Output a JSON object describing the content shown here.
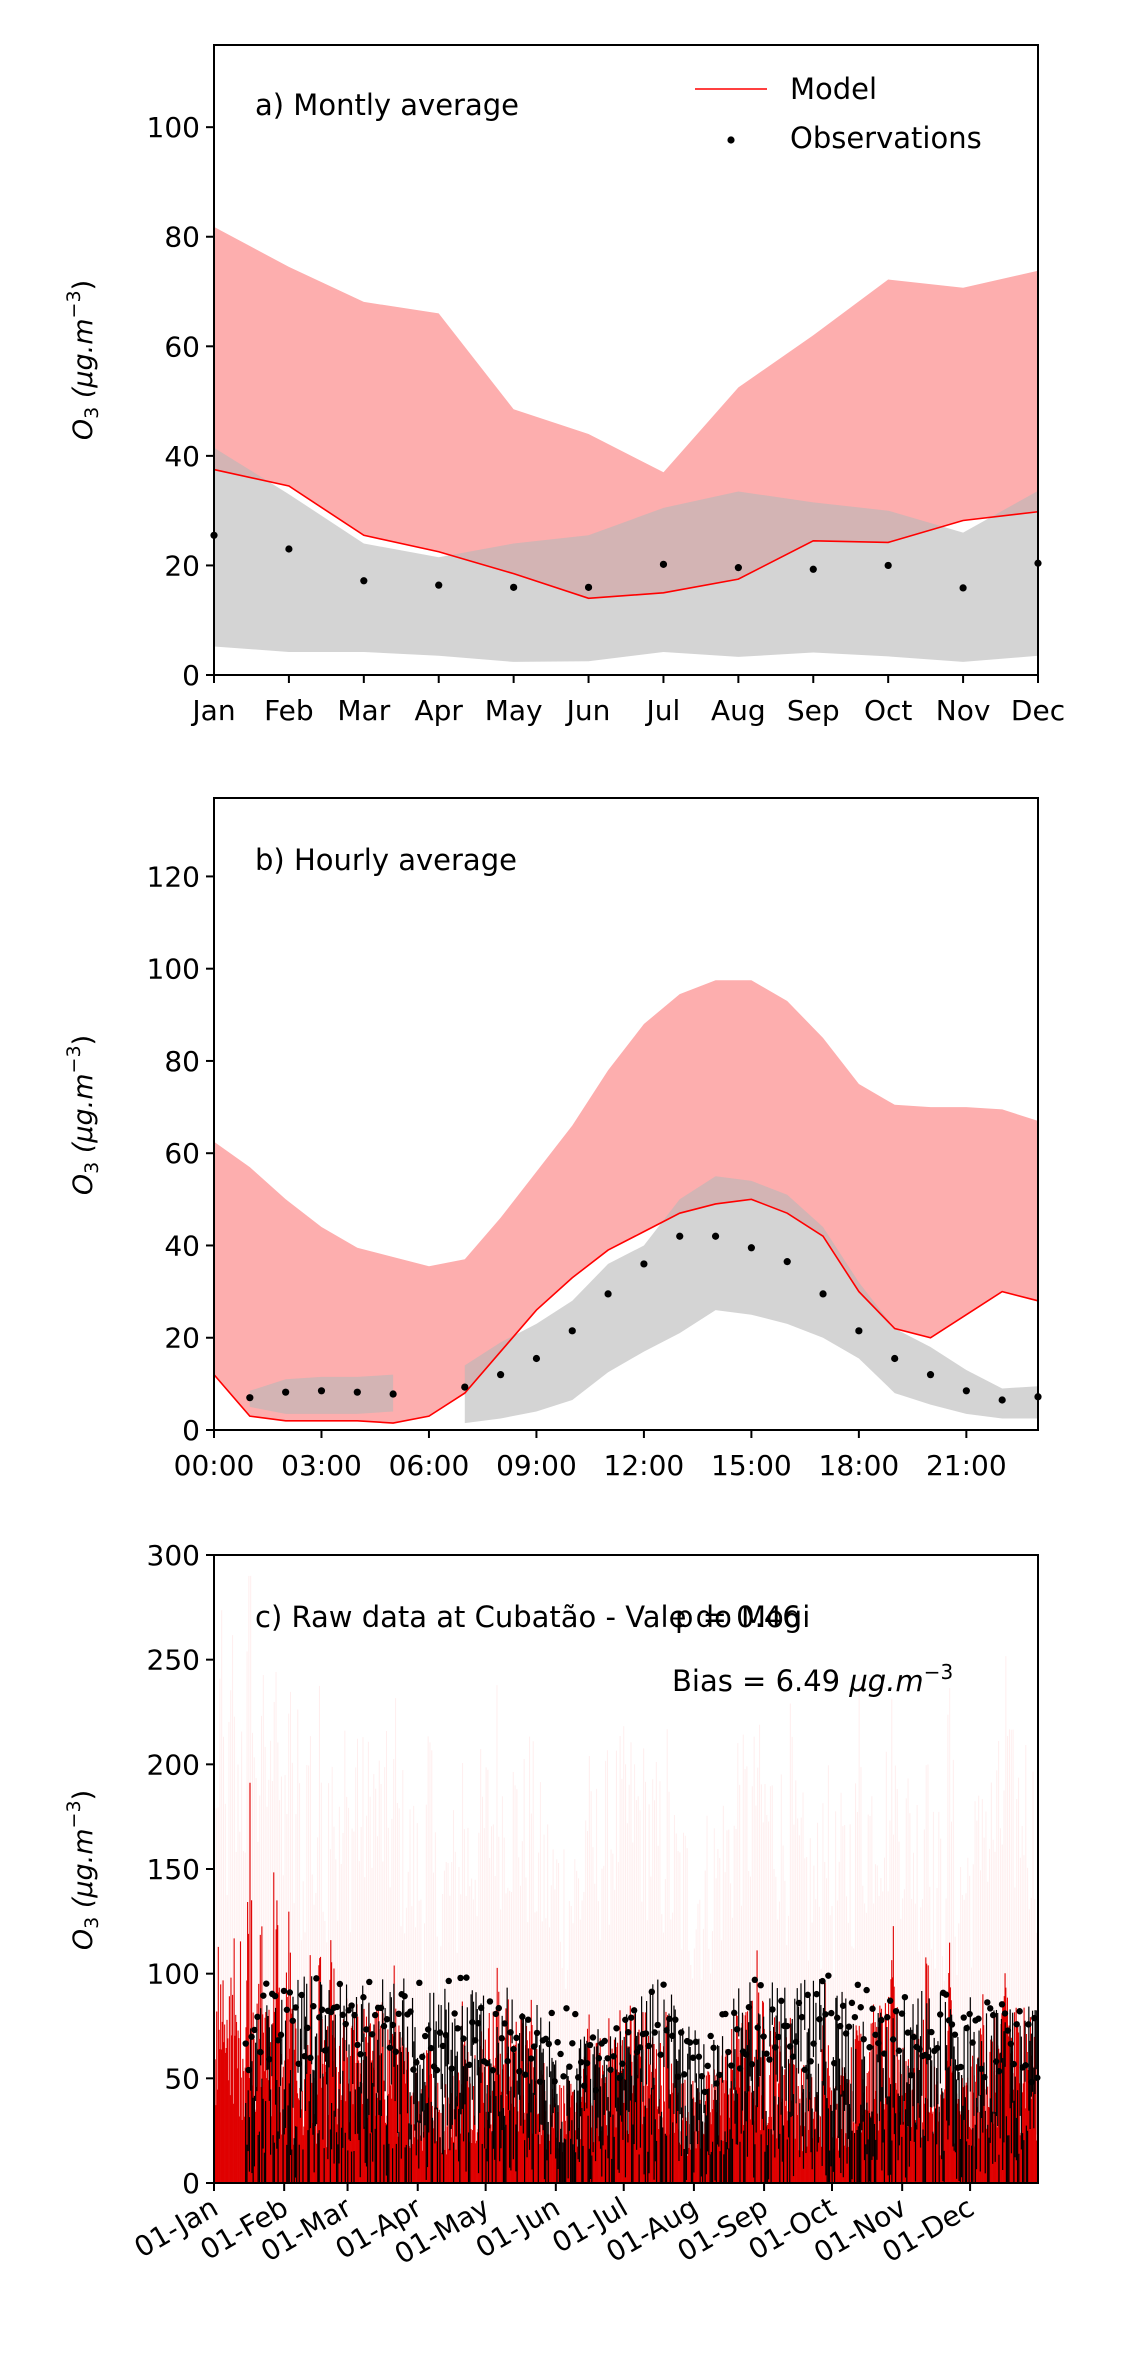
{
  "chart_data": [
    {
      "type": "line",
      "panel_label": "a) Montly average",
      "ylabel": "O3 (μg.m⁻³)",
      "ylabel_main": "O",
      "ylabel_sub": "3",
      "ylabel_unit": " (μg.m",
      "ylabel_exp": "−3",
      "ylabel_close": ")",
      "ylim": [
        0,
        115
      ],
      "yticks": [
        "0",
        "20",
        "40",
        "60",
        "80",
        "100"
      ],
      "categories": [
        "Jan",
        "Feb",
        "Mar",
        "Apr",
        "May",
        "Jun",
        "Jul",
        "Aug",
        "Sep",
        "Oct",
        "Nov",
        "Dec"
      ],
      "legend": {
        "position": "top-right",
        "entries": [
          "Model",
          "Observations"
        ]
      },
      "series": [
        {
          "name": "Model",
          "color": "#ff0000",
          "values": [
            37.5,
            34.5,
            25.5,
            22.5,
            18.5,
            14,
            15,
            17.5,
            24.5,
            24.2,
            28.2,
            29.8
          ]
        },
        {
          "name": "Observations",
          "color": "#000000",
          "values": [
            25.5,
            23,
            17.2,
            16.4,
            16,
            16,
            20.2,
            19.6,
            19.3,
            20,
            15.9,
            20.4
          ]
        }
      ],
      "model_band": {
        "color": "#fdaeae",
        "upper": [
          81.8,
          74.5,
          68.1,
          66,
          48.5,
          44,
          37,
          52.5,
          62,
          72.2,
          70.7,
          73.8
        ],
        "lower": [
          37.5,
          34.5,
          25.5,
          22.5,
          18.5,
          14,
          15,
          17.5,
          24.5,
          24.2,
          28.2,
          29.8
        ]
      },
      "obs_band": {
        "color": "#d4d4d4",
        "upper": [
          41.5,
          33,
          24,
          21.5,
          24,
          25.5,
          30.5,
          33.5,
          31.5,
          30,
          26,
          33.6
        ],
        "lower": [
          5.2,
          4.2,
          4.2,
          3.5,
          2.4,
          2.5,
          4.2,
          3.3,
          4.1,
          3.4,
          2.4,
          3.5
        ]
      }
    },
    {
      "type": "line",
      "panel_label": "b) Hourly average",
      "ylabel": "O3 (μg.m⁻³)",
      "ylabel_main": "O",
      "ylabel_sub": "3",
      "ylabel_unit": " (μg.m",
      "ylabel_exp": "−3",
      "ylabel_close": ")",
      "ylim": [
        0,
        137
      ],
      "xlim": [
        0,
        23
      ],
      "yticks": [
        "0",
        "20",
        "40",
        "60",
        "80",
        "100",
        "120"
      ],
      "xticks": [
        {
          "x": 0,
          "label": "00:00"
        },
        {
          "x": 3,
          "label": "03:00"
        },
        {
          "x": 6,
          "label": "06:00"
        },
        {
          "x": 9,
          "label": "09:00"
        },
        {
          "x": 12,
          "label": "12:00"
        },
        {
          "x": 15,
          "label": "15:00"
        },
        {
          "x": 18,
          "label": "18:00"
        },
        {
          "x": 21,
          "label": "21:00"
        }
      ],
      "x": [
        0,
        1,
        2,
        3,
        4,
        5,
        6,
        7,
        8,
        9,
        10,
        11,
        12,
        13,
        14,
        15,
        16,
        17,
        18,
        19,
        20,
        21,
        22,
        23
      ],
      "series": [
        {
          "name": "Model",
          "color": "#ff0000",
          "values": [
            12,
            3,
            2,
            2,
            2,
            1.5,
            3,
            8,
            17,
            26,
            33,
            39,
            43,
            47,
            49,
            50,
            47,
            42,
            30,
            22,
            20,
            25,
            30,
            28
          ]
        },
        {
          "name": "Observations",
          "color": "#000000",
          "values": [
            null,
            7,
            8.2,
            8.5,
            8.2,
            7.8,
            null,
            9.3,
            12,
            15.5,
            21.5,
            29.5,
            36,
            42,
            42,
            39.5,
            36.5,
            29.5,
            21.5,
            15.5,
            12,
            8.5,
            6.5,
            7.2
          ]
        }
      ],
      "model_band": {
        "color": "#fdaeae",
        "x": [
          0,
          1,
          2,
          3,
          4,
          5,
          6,
          7,
          8,
          9,
          10,
          11,
          12,
          13,
          14,
          15,
          16,
          17,
          18,
          19,
          20,
          21,
          22,
          23
        ],
        "upper": [
          62.5,
          57,
          50,
          44,
          39.5,
          37.5,
          35.5,
          37,
          46,
          56,
          66,
          78,
          88,
          94.5,
          97.5,
          97.5,
          93,
          85,
          75,
          70.5,
          70,
          70,
          69.5,
          67
        ],
        "lower": [
          12,
          3,
          2,
          2,
          2,
          1.5,
          3,
          8,
          17,
          26,
          33,
          39,
          43,
          47,
          49,
          50,
          47,
          42,
          30,
          22,
          20,
          25,
          30,
          28
        ]
      },
      "obs_band": {
        "color": "#d4d4d4",
        "segments": [
          {
            "x": [
              1,
              2,
              3,
              4,
              5
            ],
            "upper": [
              8.5,
              11,
              11.5,
              11.5,
              12
            ],
            "lower": [
              5,
              3.5,
              3.5,
              3.5,
              4
            ]
          },
          {
            "x": [
              7,
              8,
              9,
              10,
              11,
              12,
              13,
              14,
              15,
              16,
              17,
              18,
              19,
              20,
              21,
              22,
              23
            ],
            "upper": [
              14,
              19,
              23,
              28,
              36,
              40,
              50,
              55,
              54,
              51,
              44,
              32,
              22,
              18,
              13,
              9,
              9.5
            ],
            "lower": [
              1.5,
              2.5,
              4,
              6.5,
              12.5,
              17,
              21,
              26,
              25,
              23,
              20,
              15.5,
              8,
              5.5,
              3.5,
              2.5,
              2.5
            ]
          }
        ]
      }
    },
    {
      "type": "line",
      "panel_label": "c) Raw data at Cubatão - Vale do Mogi",
      "overlap_text": "p = 0.46",
      "bias_label": "Bias = 6.49 ",
      "bias_unit": "μg.m",
      "bias_exp": "−3",
      "ylabel": "O3 (μg.m⁻³)",
      "ylabel_main": "O",
      "ylabel_sub": "3",
      "ylabel_unit": " (μg.m",
      "ylabel_exp": "−3",
      "ylabel_close": ")",
      "ylim": [
        0,
        300
      ],
      "yticks": [
        "0",
        "50",
        "100",
        "150",
        "200",
        "250",
        "300"
      ],
      "xlim_days": [
        0,
        364
      ],
      "xticks": [
        {
          "day": 0,
          "label": "01-Jan"
        },
        {
          "day": 31,
          "label": "01-Feb"
        },
        {
          "day": 59,
          "label": "01-Mar"
        },
        {
          "day": 90,
          "label": "01-Apr"
        },
        {
          "day": 120,
          "label": "01-May"
        },
        {
          "day": 151,
          "label": "01-Jun"
        },
        {
          "day": 181,
          "label": "01-Jul"
        },
        {
          "day": 212,
          "label": "01-Aug"
        },
        {
          "day": 243,
          "label": "01-Sep"
        },
        {
          "day": 273,
          "label": "01-Oct"
        },
        {
          "day": 304,
          "label": "01-Nov"
        },
        {
          "day": 334,
          "label": "01-Dec"
        }
      ],
      "model_color": "#e00000",
      "obs_color": "#000000",
      "model_peaks": [
        {
          "day": 3,
          "value": 160
        },
        {
          "day": 8,
          "value": 155
        },
        {
          "day": 12,
          "value": 130
        },
        {
          "day": 16,
          "value": 220
        },
        {
          "day": 21,
          "value": 150
        },
        {
          "day": 24,
          "value": 120
        },
        {
          "day": 27,
          "value": 195
        },
        {
          "day": 33,
          "value": 145
        },
        {
          "day": 37,
          "value": 110
        },
        {
          "day": 42,
          "value": 130
        },
        {
          "day": 47,
          "value": 125
        },
        {
          "day": 52,
          "value": 140
        },
        {
          "day": 58,
          "value": 105
        },
        {
          "day": 63,
          "value": 125
        },
        {
          "day": 70,
          "value": 115
        },
        {
          "day": 80,
          "value": 120
        },
        {
          "day": 95,
          "value": 110
        },
        {
          "day": 110,
          "value": 105
        },
        {
          "day": 125,
          "value": 118
        },
        {
          "day": 140,
          "value": 110
        },
        {
          "day": 165,
          "value": 100
        },
        {
          "day": 185,
          "value": 95
        },
        {
          "day": 200,
          "value": 100
        },
        {
          "day": 232,
          "value": 118
        },
        {
          "day": 240,
          "value": 122
        },
        {
          "day": 255,
          "value": 112
        },
        {
          "day": 270,
          "value": 108
        },
        {
          "day": 285,
          "value": 125
        },
        {
          "day": 300,
          "value": 128
        },
        {
          "day": 315,
          "value": 135
        },
        {
          "day": 325,
          "value": 126
        },
        {
          "day": 340,
          "value": 118
        },
        {
          "day": 350,
          "value": 145
        },
        {
          "day": 358,
          "value": 110
        }
      ],
      "obs_envelope": [
        {
          "day": 15,
          "value": 92
        },
        {
          "day": 35,
          "value": 100
        },
        {
          "day": 55,
          "value": 98
        },
        {
          "day": 75,
          "value": 102
        },
        {
          "day": 95,
          "value": 95
        },
        {
          "day": 115,
          "value": 103
        },
        {
          "day": 135,
          "value": 90
        },
        {
          "day": 155,
          "value": 85
        },
        {
          "day": 175,
          "value": 70
        },
        {
          "day": 195,
          "value": 100
        },
        {
          "day": 215,
          "value": 72
        },
        {
          "day": 235,
          "value": 99
        },
        {
          "day": 255,
          "value": 95
        },
        {
          "day": 275,
          "value": 103
        },
        {
          "day": 295,
          "value": 88
        },
        {
          "day": 315,
          "value": 95
        },
        {
          "day": 335,
          "value": 92
        },
        {
          "day": 355,
          "value": 85
        }
      ]
    }
  ]
}
